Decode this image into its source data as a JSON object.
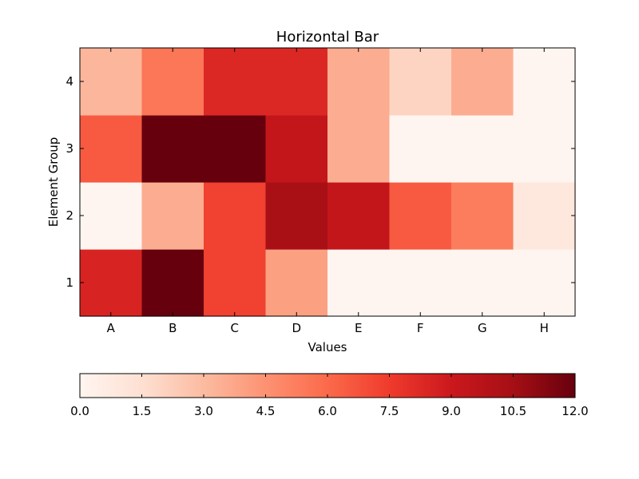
{
  "chart_data": {
    "type": "heatmap",
    "title": "Horizontal Bar",
    "xlabel": "Values",
    "ylabel": "Element Group",
    "x_categories": [
      "A",
      "B",
      "C",
      "D",
      "E",
      "F",
      "G",
      "H"
    ],
    "y_categories": [
      "1",
      "2",
      "3",
      "4"
    ],
    "values": [
      [
        8.5,
        12.0,
        7.3,
        4.0,
        0.0,
        0.0,
        0.0,
        0.0
      ],
      [
        0.0,
        3.5,
        7.3,
        10.4,
        9.3,
        6.5,
        5.3,
        1.0
      ],
      [
        6.5,
        12.0,
        12.0,
        9.3,
        3.5,
        0.0,
        0.0,
        0.0
      ],
      [
        3.2,
        5.5,
        8.3,
        8.3,
        3.5,
        2.0,
        3.5,
        0.0
      ]
    ],
    "value_range": [
      0,
      12
    ],
    "colormap": "Reds",
    "colorbar": {
      "orientation": "horizontal",
      "ticks": [
        "0.0",
        "1.5",
        "3.0",
        "4.5",
        "6.0",
        "7.5",
        "9.0",
        "10.5",
        "12.0"
      ]
    },
    "colors": {
      "stops": [
        "#fff5f0",
        "#fee0d2",
        "#fcbba1",
        "#fc9272",
        "#fb6a4a",
        "#ef3b2c",
        "#cb181d",
        "#a50f15",
        "#67000d"
      ]
    }
  }
}
